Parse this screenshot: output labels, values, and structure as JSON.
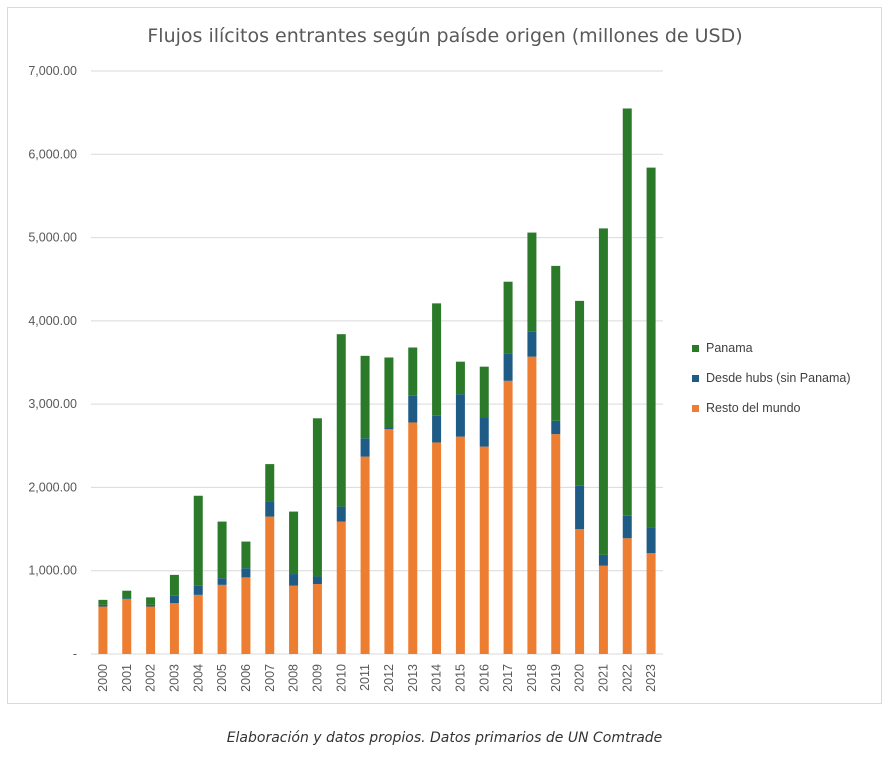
{
  "chart_data": {
    "type": "bar",
    "stacked": true,
    "title": "Flujos ilícitos entrantes según paísde origen (millones de USD)",
    "xlabel": "",
    "ylabel": "",
    "ylim": [
      0,
      7000
    ],
    "y_ticks": [
      0,
      1000,
      2000,
      3000,
      4000,
      5000,
      6000,
      7000
    ],
    "y_tick_labels": [
      "-",
      "1,000.00",
      "2,000.00",
      "3,000.00",
      "4,000.00",
      "5,000.00",
      "6,000.00",
      "7,000.00"
    ],
    "grid": true,
    "legend_position": "right",
    "categories": [
      "2000",
      "2001",
      "2002",
      "2003",
      "2004",
      "2005",
      "2006",
      "2007",
      "2008",
      "2009",
      "2010",
      "2011",
      "2012",
      "2013",
      "2014",
      "2015",
      "2016",
      "2017",
      "2018",
      "2019",
      "2020",
      "2021",
      "2022",
      "2023"
    ],
    "series": [
      {
        "name": "Resto del mundo",
        "color": "#ed7d31",
        "values": [
          570,
          660,
          570,
          610,
          710,
          830,
          920,
          1650,
          820,
          840,
          1590,
          2370,
          2700,
          2780,
          2540,
          2610,
          2490,
          3280,
          3570,
          2640,
          1500,
          1060,
          1390,
          1210
        ]
      },
      {
        "name": "Desde hubs (sin Panama)",
        "color": "#1f5c85",
        "values": [
          20,
          10,
          20,
          90,
          110,
          80,
          110,
          180,
          140,
          90,
          180,
          220,
          20,
          320,
          320,
          510,
          350,
          330,
          300,
          160,
          520,
          130,
          270,
          310
        ]
      },
      {
        "name": "Panama",
        "color": "#2a7a2a",
        "values": [
          60,
          90,
          90,
          250,
          1080,
          680,
          320,
          450,
          750,
          1900,
          2070,
          990,
          840,
          580,
          1350,
          390,
          610,
          860,
          1190,
          1860,
          2220,
          3920,
          4890,
          4320
        ]
      }
    ]
  },
  "caption": "Elaboración y datos propios. Datos primarios de UN Comtrade"
}
